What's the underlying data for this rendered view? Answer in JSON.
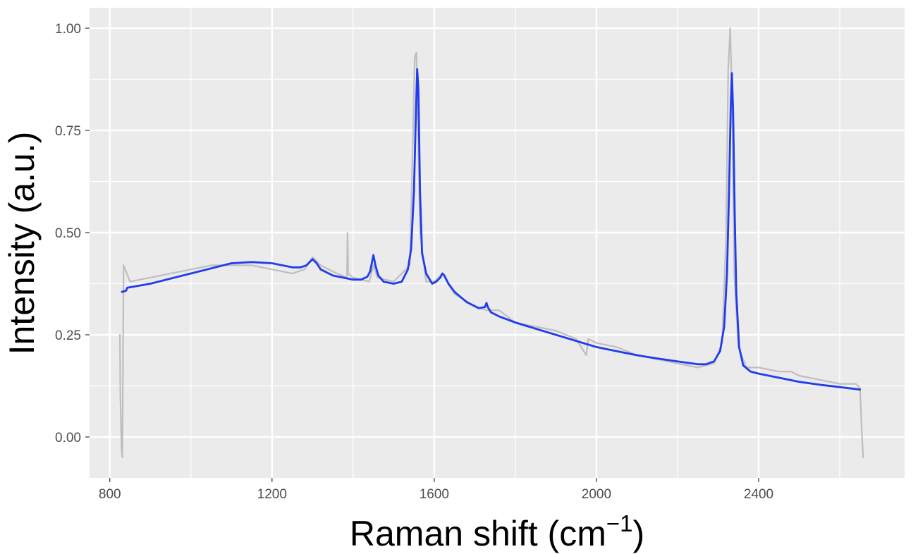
{
  "chart_data": {
    "type": "line",
    "title": "",
    "xlabel": "Raman shift (cm",
    "xlabel_superscript": "−1",
    "xlabel_suffix": ")",
    "ylabel": "Intensity (a.u.)",
    "xlim": [
      750,
      2760
    ],
    "ylim": [
      -0.1,
      1.05
    ],
    "x_ticks": [
      800,
      1200,
      1600,
      2000,
      2400
    ],
    "x_tick_labels": [
      "800",
      "1200",
      "1600",
      "2000",
      "2400"
    ],
    "x_minor_ticks": [
      1000,
      1400,
      1800,
      2200,
      2600
    ],
    "y_ticks": [
      0.0,
      0.25,
      0.5,
      0.75,
      1.0
    ],
    "y_tick_labels": [
      "0.00",
      "0.25",
      "0.50",
      "0.75",
      "1.00"
    ],
    "y_minor_ticks": [
      0.125,
      0.375,
      0.625,
      0.875
    ],
    "grid": true,
    "legend": "none",
    "colors": {
      "panel_background": "#ebebeb",
      "grid": "#ffffff",
      "raw": "#bebebe",
      "fit": "#1f3ced"
    },
    "series": [
      {
        "color": "#bebebe",
        "x": [
          825,
          826,
          829,
          831,
          834,
          850,
          900,
          950,
          1000,
          1050,
          1100,
          1150,
          1200,
          1250,
          1280,
          1300,
          1320,
          1360,
          1385,
          1386,
          1388,
          1400,
          1440,
          1450,
          1460,
          1500,
          1540,
          1548,
          1552,
          1556,
          1560,
          1565,
          1580,
          1600,
          1620,
          1650,
          1700,
          1730,
          1760,
          1800,
          1850,
          1900,
          1950,
          1975,
          1980,
          2000,
          2050,
          2100,
          2150,
          2200,
          2250,
          2290,
          2310,
          2320,
          2325,
          2330,
          2335,
          2340,
          2350,
          2370,
          2400,
          2450,
          2480,
          2500,
          2550,
          2600,
          2640,
          2650,
          2655,
          2658
        ],
        "y": [
          0.25,
          0.1,
          -0.03,
          -0.05,
          0.42,
          0.38,
          0.39,
          0.4,
          0.41,
          0.42,
          0.42,
          0.42,
          0.41,
          0.4,
          0.41,
          0.44,
          0.42,
          0.4,
          0.39,
          0.5,
          0.4,
          0.39,
          0.38,
          0.42,
          0.39,
          0.38,
          0.42,
          0.75,
          0.93,
          0.94,
          0.75,
          0.5,
          0.38,
          0.38,
          0.4,
          0.35,
          0.32,
          0.31,
          0.31,
          0.28,
          0.27,
          0.26,
          0.24,
          0.2,
          0.24,
          0.23,
          0.22,
          0.2,
          0.19,
          0.18,
          0.17,
          0.18,
          0.23,
          0.5,
          0.9,
          1.0,
          0.8,
          0.4,
          0.22,
          0.17,
          0.17,
          0.16,
          0.16,
          0.15,
          0.14,
          0.13,
          0.13,
          0.12,
          0.0,
          -0.05
        ]
      },
      {
        "color": "#1f3ced",
        "x": [
          830,
          840,
          843,
          900,
          1000,
          1100,
          1150,
          1200,
          1250,
          1270,
          1285,
          1295,
          1300,
          1310,
          1320,
          1350,
          1400,
          1420,
          1435,
          1442,
          1447,
          1450,
          1455,
          1462,
          1475,
          1500,
          1520,
          1535,
          1543,
          1550,
          1555,
          1558,
          1561,
          1565,
          1570,
          1580,
          1595,
          1605,
          1615,
          1620,
          1625,
          1635,
          1650,
          1680,
          1710,
          1725,
          1729,
          1732,
          1740,
          1760,
          1800,
          1850,
          1900,
          1950,
          2000,
          2050,
          2100,
          2150,
          2200,
          2250,
          2270,
          2290,
          2305,
          2315,
          2322,
          2327,
          2331,
          2334,
          2337,
          2341,
          2345,
          2352,
          2362,
          2380,
          2400,
          2450,
          2500,
          2550,
          2600,
          2650
        ],
        "y": [
          0.355,
          0.358,
          0.365,
          0.375,
          0.4,
          0.425,
          0.428,
          0.425,
          0.415,
          0.415,
          0.42,
          0.43,
          0.435,
          0.425,
          0.41,
          0.395,
          0.385,
          0.385,
          0.392,
          0.405,
          0.43,
          0.445,
          0.42,
          0.395,
          0.38,
          0.375,
          0.38,
          0.41,
          0.46,
          0.6,
          0.8,
          0.9,
          0.85,
          0.6,
          0.45,
          0.4,
          0.375,
          0.38,
          0.39,
          0.4,
          0.395,
          0.375,
          0.355,
          0.33,
          0.315,
          0.318,
          0.328,
          0.318,
          0.305,
          0.295,
          0.28,
          0.265,
          0.25,
          0.235,
          0.22,
          0.21,
          0.2,
          0.192,
          0.185,
          0.178,
          0.178,
          0.185,
          0.21,
          0.27,
          0.4,
          0.6,
          0.8,
          0.89,
          0.8,
          0.55,
          0.35,
          0.22,
          0.175,
          0.16,
          0.155,
          0.145,
          0.135,
          0.128,
          0.122,
          0.116
        ]
      }
    ]
  }
}
